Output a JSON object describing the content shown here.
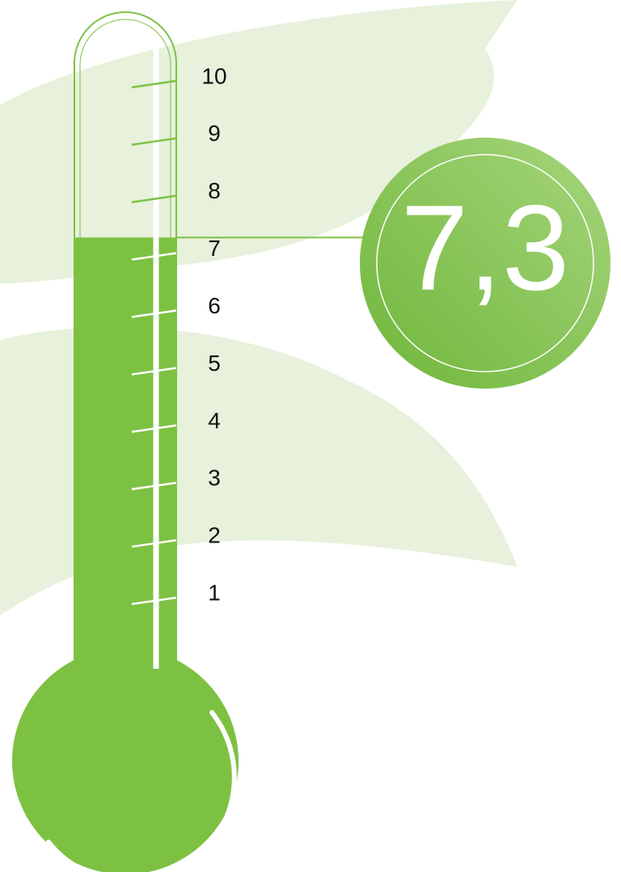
{
  "chart_data": {
    "type": "thermometer",
    "value": 7.3,
    "value_label": "7,3",
    "ylim": [
      0,
      11
    ],
    "yticks": [
      1,
      2,
      3,
      4,
      5,
      6,
      7,
      8,
      9,
      10
    ],
    "color": "#7dc142"
  }
}
